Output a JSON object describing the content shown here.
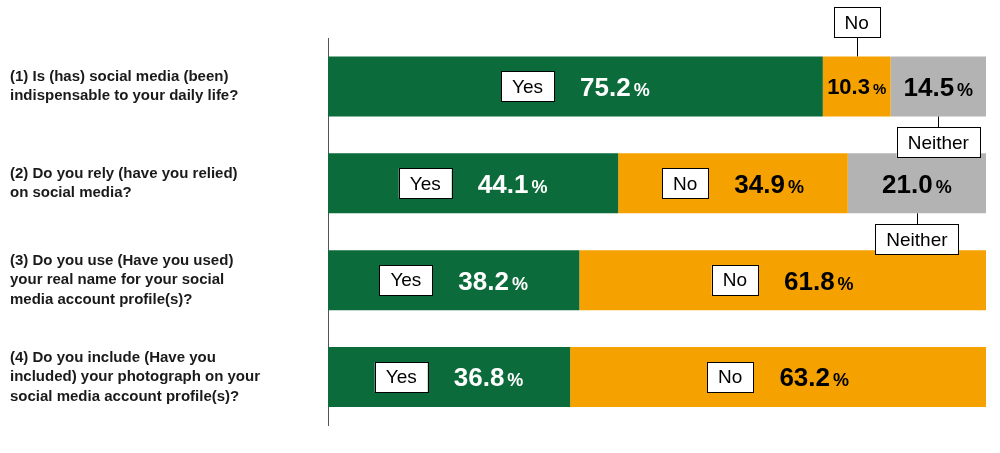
{
  "chart_data": {
    "type": "bar",
    "orientation": "horizontal",
    "stacked": true,
    "data_labels": true,
    "grid": false,
    "tick_labels": "y",
    "categories": [
      [
        "(1) Is (has) social media (been)",
        "indispensable to your daily life?"
      ],
      [
        "(2) Do you rely (have you relied)",
        "on social media?"
      ],
      [
        "(3) Do you use (Have you used)",
        "your real name for your social",
        "media account profile(s)?"
      ],
      [
        "(4) Do you include (Have you",
        "included) your photograph on your",
        "social media account profile(s)?"
      ]
    ],
    "xlim": [
      0,
      100
    ],
    "series": [
      {
        "name": "Yes",
        "color": "#0b6b3a",
        "values": [
          75.2,
          44.1,
          38.2,
          36.8
        ],
        "value_labels": [
          "75.2%",
          "44.1%",
          "38.2%",
          "36.8%"
        ]
      },
      {
        "name": "No",
        "color": "#f5a200",
        "values": [
          10.3,
          34.9,
          61.8,
          63.2
        ],
        "value_labels": [
          "10.3%",
          "34.9%",
          "61.8%",
          "63.2%"
        ]
      },
      {
        "name": "Neither",
        "color": "#b3b3b3",
        "values": [
          14.5,
          21.0,
          null,
          null
        ],
        "value_labels": [
          "14.5%",
          "21.0%",
          null,
          null
        ]
      }
    ]
  }
}
